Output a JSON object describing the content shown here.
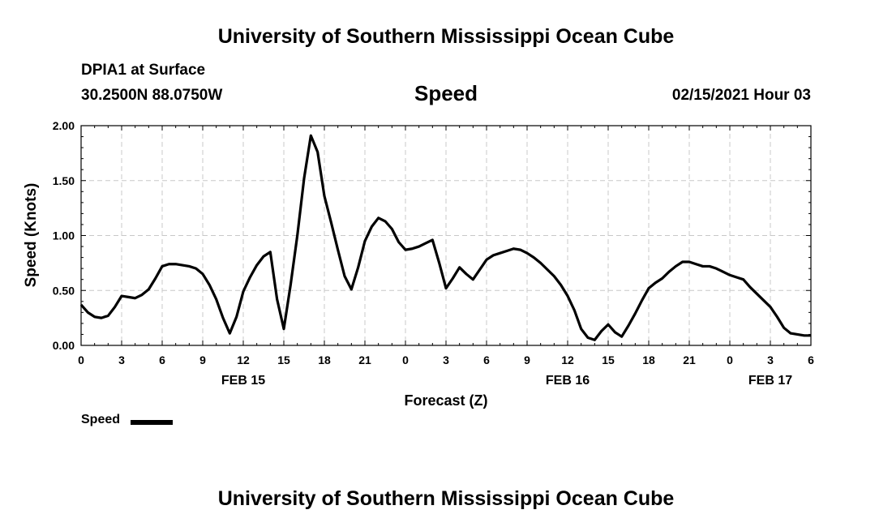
{
  "header": {
    "title_top": "University of Southern Mississippi Ocean Cube",
    "station": "DPIA1 at Surface",
    "coords": "30.2500N 88.0750W",
    "timestamp": "02/15/2021 Hour 03",
    "title_bottom": "University of Southern Mississippi Ocean Cube"
  },
  "legend": {
    "label": "Speed",
    "color": "#000000"
  },
  "chart_data": {
    "type": "line",
    "title": "Speed",
    "xlabel": "Forecast (Z)",
    "ylabel": "Speed (Knots)",
    "ylim": [
      0,
      2
    ],
    "xlim": [
      0,
      54
    ],
    "yticks": [
      "0.00",
      "0.50",
      "1.00",
      "1.50",
      "2.00"
    ],
    "xticks": [
      "0",
      "3",
      "6",
      "9",
      "12",
      "15",
      "18",
      "21",
      "0",
      "3",
      "6",
      "9",
      "12",
      "15",
      "18",
      "21",
      "0",
      "3",
      "6"
    ],
    "date_labels": [
      {
        "label": "FEB 15",
        "x": 12
      },
      {
        "label": "FEB 16",
        "x": 36
      },
      {
        "label": "FEB 17",
        "x": 51
      }
    ],
    "grid": true,
    "legend_position": "bottom-left",
    "series": [
      {
        "name": "Speed",
        "color": "#000000",
        "x": [
          0,
          0.5,
          1,
          1.5,
          2,
          2.5,
          3,
          3.5,
          4,
          4.5,
          5,
          5.5,
          6,
          6.5,
          7,
          7.5,
          8,
          8.5,
          9,
          9.5,
          10,
          10.5,
          11,
          11.5,
          12,
          12.5,
          13,
          13.5,
          14,
          14.5,
          15,
          15.5,
          16,
          16.5,
          17,
          17.5,
          18,
          18.5,
          19,
          19.5,
          20,
          20.5,
          21,
          21.5,
          22,
          22.5,
          23,
          23.5,
          24,
          24.5,
          25,
          25.5,
          26,
          26.5,
          27,
          27.5,
          28,
          28.5,
          29,
          29.5,
          30,
          30.5,
          31,
          31.5,
          32,
          32.5,
          33,
          33.5,
          34,
          34.5,
          35,
          35.5,
          36,
          36.5,
          37,
          37.5,
          38,
          38.5,
          39,
          39.5,
          40,
          40.5,
          41,
          41.5,
          42,
          42.5,
          43,
          43.5,
          44,
          44.5,
          45,
          45.5,
          46,
          46.5,
          47,
          47.5,
          48,
          48.5,
          49,
          49.5,
          50,
          50.5,
          51,
          51.5,
          52,
          52.5,
          53,
          53.5,
          54
        ],
        "values": [
          0.37,
          0.3,
          0.26,
          0.25,
          0.27,
          0.35,
          0.45,
          0.44,
          0.43,
          0.46,
          0.51,
          0.61,
          0.72,
          0.74,
          0.74,
          0.73,
          0.72,
          0.7,
          0.65,
          0.55,
          0.42,
          0.25,
          0.11,
          0.26,
          0.49,
          0.62,
          0.73,
          0.81,
          0.85,
          0.42,
          0.15,
          0.55,
          1.0,
          1.52,
          1.91,
          1.76,
          1.36,
          1.12,
          0.87,
          0.63,
          0.51,
          0.71,
          0.95,
          1.08,
          1.16,
          1.13,
          1.06,
          0.94,
          0.87,
          0.88,
          0.9,
          0.93,
          0.96,
          0.75,
          0.52,
          0.61,
          0.71,
          0.65,
          0.6,
          0.69,
          0.78,
          0.82,
          0.84,
          0.86,
          0.88,
          0.87,
          0.84,
          0.8,
          0.75,
          0.69,
          0.63,
          0.55,
          0.45,
          0.32,
          0.15,
          0.07,
          0.05,
          0.13,
          0.19,
          0.12,
          0.08,
          0.18,
          0.29,
          0.41,
          0.52,
          0.57,
          0.61,
          0.67,
          0.72,
          0.76,
          0.76,
          0.74,
          0.72,
          0.72,
          0.7,
          0.67,
          0.64,
          0.62,
          0.6,
          0.53,
          0.47,
          0.41,
          0.35,
          0.26,
          0.16,
          0.11,
          0.1,
          0.09,
          0.09
        ]
      }
    ]
  }
}
